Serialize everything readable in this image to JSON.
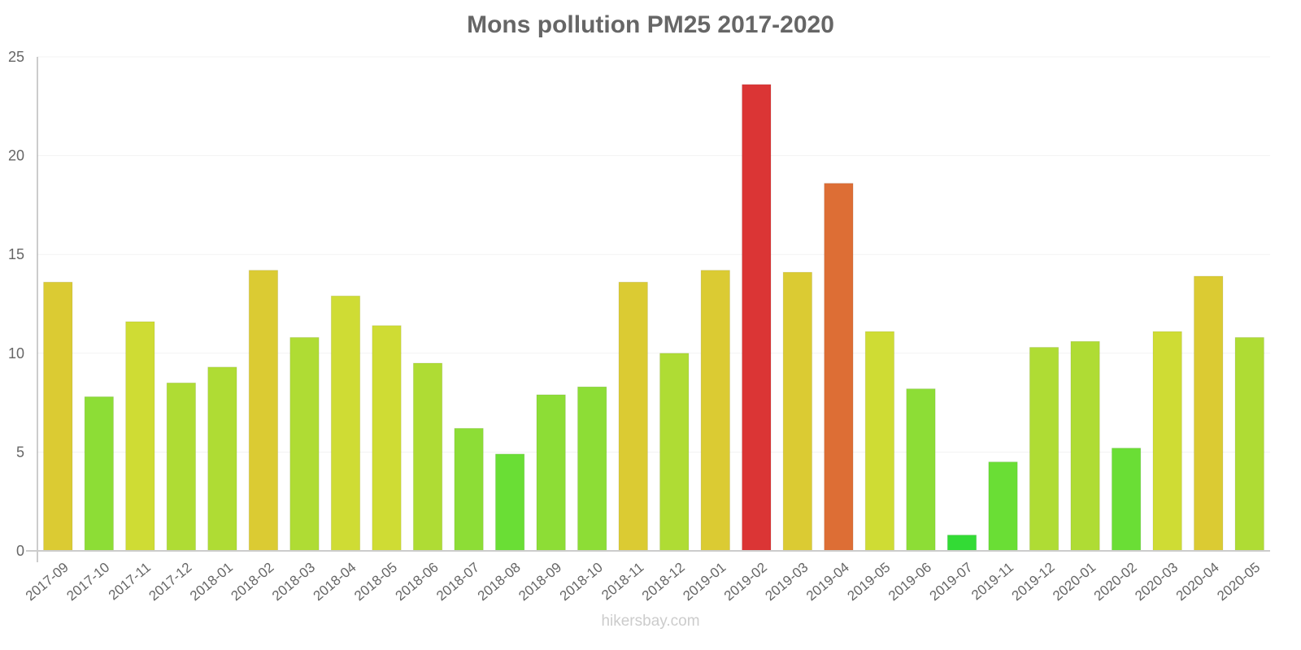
{
  "chart_data": {
    "type": "bar",
    "title": "Mons pollution PM25 2017-2020",
    "xlabel": "",
    "ylabel": "",
    "ylim": [
      0,
      25
    ],
    "yticks": [
      0,
      5,
      10,
      15,
      20,
      25
    ],
    "grid": true,
    "legend": null,
    "categories": [
      "2017-09",
      "2017-10",
      "2017-11",
      "2017-12",
      "2018-01",
      "2018-02",
      "2018-03",
      "2018-04",
      "2018-05",
      "2018-06",
      "2018-07",
      "2018-08",
      "2018-09",
      "2018-10",
      "2018-11",
      "2018-12",
      "2019-01",
      "2019-02",
      "2019-03",
      "2019-04",
      "2019-05",
      "2019-06",
      "2019-07",
      "2019-11",
      "2019-12",
      "2020-01",
      "2020-02",
      "2020-03",
      "2020-04",
      "2020-05"
    ],
    "values": [
      13.6,
      7.8,
      11.6,
      8.5,
      9.3,
      14.2,
      10.8,
      12.9,
      11.4,
      9.5,
      6.2,
      4.9,
      7.9,
      8.3,
      13.6,
      10.0,
      14.2,
      23.6,
      14.1,
      18.6,
      11.1,
      8.2,
      0.8,
      4.5,
      10.3,
      10.6,
      5.2,
      11.1,
      13.9,
      10.8
    ],
    "colors": [
      "#dbcb33",
      "#8ddd36",
      "#cfdc34",
      "#afdc34",
      "#afdc34",
      "#dbcb33",
      "#afdc34",
      "#cfdc34",
      "#cfdc34",
      "#afdc34",
      "#8ddd36",
      "#6ade35",
      "#8ddd36",
      "#8ddd36",
      "#dbcb33",
      "#afdc34",
      "#dbcb33",
      "#db3535",
      "#dbcb33",
      "#dd6e35",
      "#cfdc34",
      "#8ddd36",
      "#33db35",
      "#6ade35",
      "#afdc34",
      "#afdc34",
      "#6ade35",
      "#cfdc34",
      "#dbcb33",
      "#afdc34"
    ]
  },
  "header": {
    "title": "Mons pollution PM25 2017-2020"
  },
  "footer": {
    "credit": "hikersbay.com"
  }
}
